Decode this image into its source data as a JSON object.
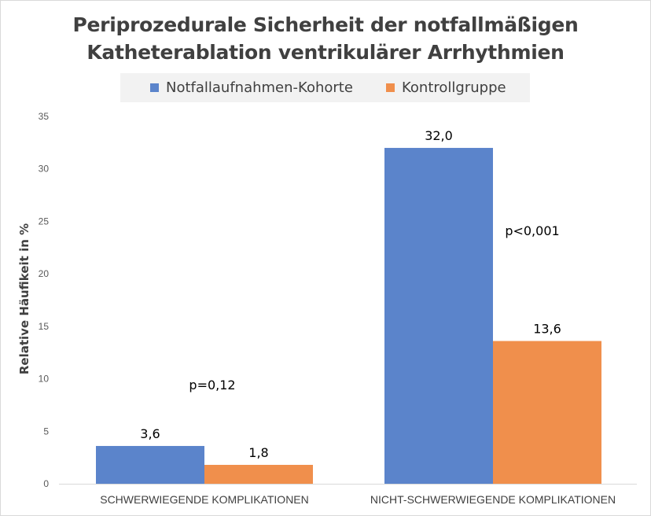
{
  "chart_data": {
    "type": "bar",
    "title_lines": [
      "Periprozedurale Sicherheit der notfallmäßigen",
      "Katheterablation ventrikulärer Arrhythmien"
    ],
    "ylabel": "Relative Häufikeit in %",
    "xlabel": "",
    "categories": [
      "SCHWERWIEGENDE KOMPLIKATIONEN",
      "NICHT-SCHWERWIEGENDE KOMPLIKATIONEN"
    ],
    "series": [
      {
        "name": "Notfallaufnahmen-Kohorte",
        "values": [
          3.6,
          32.0
        ],
        "labels": [
          "3,6",
          "32,0"
        ],
        "color": "#5b84cb"
      },
      {
        "name": "Kontrollgruppe",
        "values": [
          1.8,
          13.6
        ],
        "labels": [
          "1,8",
          "13,6"
        ],
        "color": "#f08f4c"
      }
    ],
    "ylim": [
      0,
      35
    ],
    "yticks": [
      "0",
      "5",
      "10",
      "15",
      "20",
      "25",
      "30",
      "35"
    ],
    "annotations": [
      "p=0,12",
      "p<0,001"
    ],
    "grid": false,
    "legend_position": "top"
  }
}
